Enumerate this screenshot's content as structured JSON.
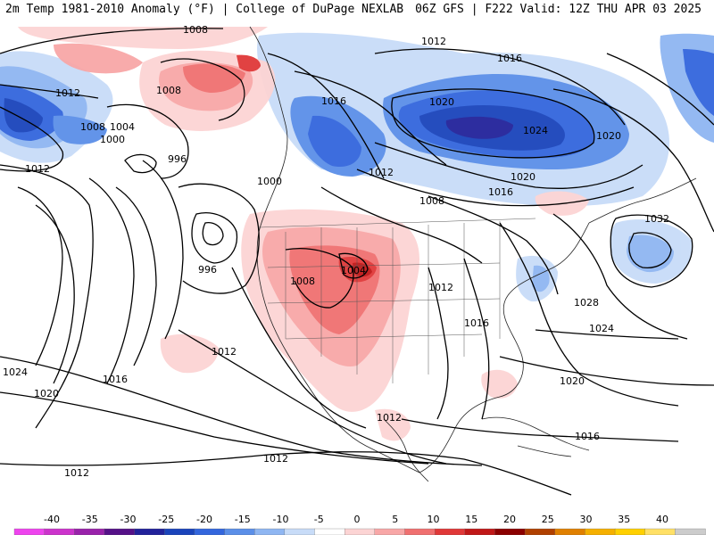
{
  "header": {
    "left_title": "2m Temp 1981-2010 Anomaly (°F) | College of DuPage NEXLAB",
    "right_title": "06Z GFS | F222 Valid: 12Z THU APR 03 2025"
  },
  "colorbar": {
    "labels": [
      "-40",
      "-35",
      "-30",
      "-25",
      "-20",
      "-15",
      "-10",
      "-5",
      "0",
      "5",
      "10",
      "15",
      "20",
      "25",
      "30",
      "35",
      "40"
    ],
    "colors": [
      "#ee44ee",
      "#cc33cc",
      "#9922aa",
      "#551188",
      "#22229a",
      "#1a44bb",
      "#3366dd",
      "#5b8fe8",
      "#8fb6f2",
      "#c8dcf8",
      "#ffffff",
      "#fcd4d4",
      "#f8a7a7",
      "#f07070",
      "#e03838",
      "#c01818",
      "#8b0000",
      "#b04000",
      "#e08000",
      "#f5b000",
      "#ffd000",
      "#ffe066",
      "#cccccc"
    ]
  },
  "isobars": {
    "labels": [
      {
        "text": "1008",
        "id": "nw-1008"
      },
      {
        "text": "1012",
        "id": "n-1012"
      },
      {
        "text": "1016",
        "id": "ne-1016"
      },
      {
        "text": "1012",
        "id": "w-1012-a"
      },
      {
        "text": "1008",
        "id": "ak-1008"
      },
      {
        "text": "1008",
        "id": "w-1008"
      },
      {
        "text": "1004",
        "id": "w-1004"
      },
      {
        "text": "1000",
        "id": "w-1000"
      },
      {
        "text": "1012",
        "id": "w-1012-b"
      },
      {
        "text": "996",
        "id": "low-996-a"
      },
      {
        "text": "1000",
        "id": "bc-1000"
      },
      {
        "text": "996",
        "id": "low-996-b"
      },
      {
        "text": "1016",
        "id": "can-1016"
      },
      {
        "text": "1020",
        "id": "can-1020"
      },
      {
        "text": "1024",
        "id": "hb-1024"
      },
      {
        "text": "1020",
        "id": "e-1020"
      },
      {
        "text": "1012",
        "id": "prairie-1012"
      },
      {
        "text": "1020",
        "id": "hb-1020-b"
      },
      {
        "text": "1016",
        "id": "can-1016-b"
      },
      {
        "text": "1008",
        "id": "plains-1008"
      },
      {
        "text": "1032",
        "id": "atl-1032"
      },
      {
        "text": "1004",
        "id": "co-1004"
      },
      {
        "text": "1008",
        "id": "ut-1008"
      },
      {
        "text": "1012",
        "id": "mw-1012"
      },
      {
        "text": "1028",
        "id": "ne-1028"
      },
      {
        "text": "1016",
        "id": "se-1016"
      },
      {
        "text": "1024",
        "id": "atl-1024"
      },
      {
        "text": "1012",
        "id": "ca-1012"
      },
      {
        "text": "1024",
        "id": "pac-1024"
      },
      {
        "text": "1016",
        "id": "pac-1016"
      },
      {
        "text": "1020",
        "id": "pac-1020"
      },
      {
        "text": "1020",
        "id": "gulf-1020"
      },
      {
        "text": "1012",
        "id": "mx-1012"
      },
      {
        "text": "1016",
        "id": "carib-1016"
      },
      {
        "text": "1012",
        "id": "spac-1012"
      },
      {
        "text": "1012",
        "id": "ca-1012-b"
      }
    ]
  }
}
